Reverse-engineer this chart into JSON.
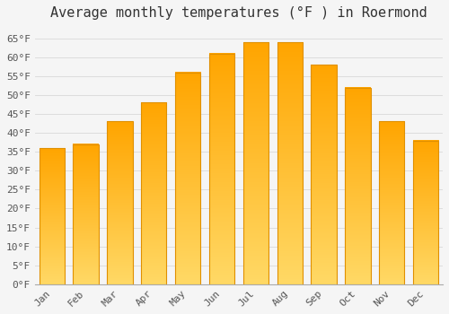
{
  "title": "Average monthly temperatures (°F ) in Roermond",
  "months": [
    "Jan",
    "Feb",
    "Mar",
    "Apr",
    "May",
    "Jun",
    "Jul",
    "Aug",
    "Sep",
    "Oct",
    "Nov",
    "Dec"
  ],
  "values": [
    36,
    37,
    43,
    48,
    56,
    61,
    64,
    64,
    58,
    52,
    43,
    38
  ],
  "bar_color_top": "#FFD966",
  "bar_color_bottom": "#FFA500",
  "bar_edge_color": "#E09000",
  "background_color": "#F5F5F5",
  "plot_bg_color": "#F5F5F5",
  "grid_color": "#DDDDDD",
  "ylim": [
    0,
    68
  ],
  "yticks": [
    0,
    5,
    10,
    15,
    20,
    25,
    30,
    35,
    40,
    45,
    50,
    55,
    60,
    65
  ],
  "title_fontsize": 11,
  "tick_fontsize": 8,
  "bar_width": 0.75
}
